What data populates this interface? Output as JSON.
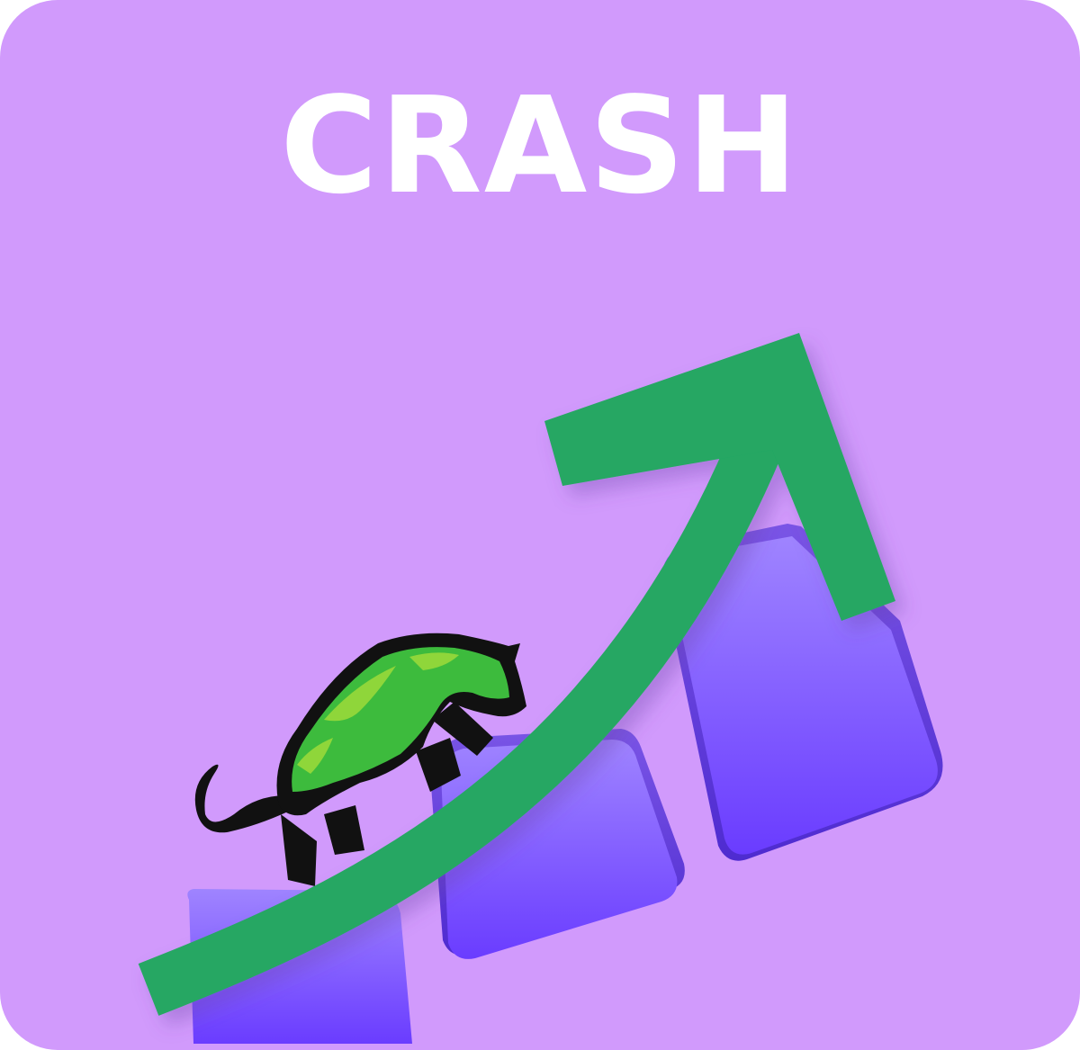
{
  "card": {
    "title": "CRASH",
    "background_color": "#d19afc",
    "title_color": "#ffffff"
  },
  "illustration": {
    "icon": "rising-arrow-over-bar-chart-with-bull",
    "arrow_color": "#25a764",
    "bar_color_top": "#9b7cff",
    "bar_color_bottom": "#6a3cff",
    "bull_color": "#3dbb3d"
  }
}
